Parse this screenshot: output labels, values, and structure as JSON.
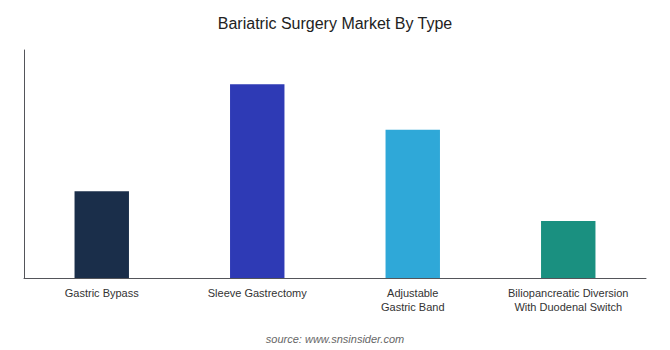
{
  "chart_data": {
    "type": "bar",
    "title": "Bariatric Surgery Market By Type",
    "annotation": "source: www.snsinsider.com",
    "categories": [
      "Gastric Bypass",
      "Sleeve Gastrectomy",
      "Adjustable\nGastric Band",
      "Biliopancreatic Diversion\nWith Duodenal Switch"
    ],
    "values": [
      38,
      85,
      65,
      25
    ],
    "colors": [
      "#1a2e4a",
      "#2e3ab5",
      "#2fa8d8",
      "#1a9080"
    ],
    "ylim": [
      0,
      100
    ],
    "yticks": [],
    "grid": false,
    "tick_labels": "x"
  }
}
